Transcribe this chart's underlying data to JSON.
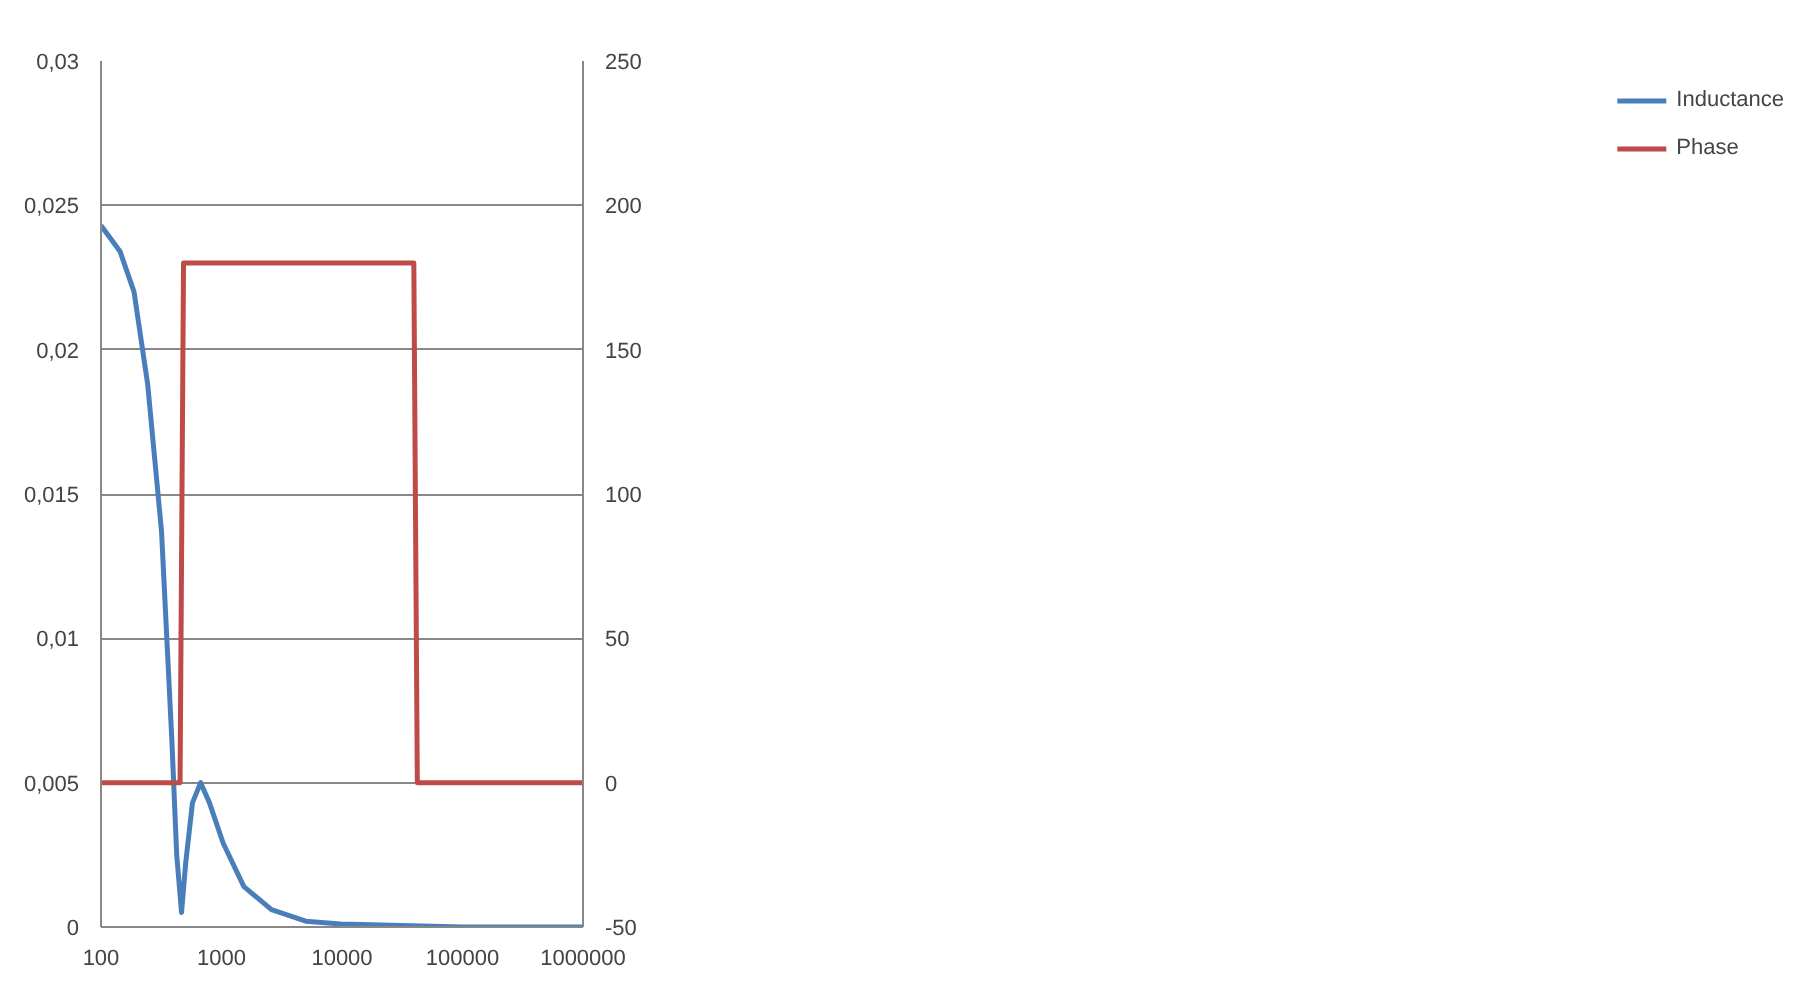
{
  "chart_data": {
    "type": "line",
    "log": "x",
    "grid": "y",
    "legend": "right",
    "xlim": [
      100,
      1000000
    ],
    "xticks": [
      100,
      1000,
      10000,
      100000,
      1000000
    ],
    "ylim": [
      0,
      0.03
    ],
    "yticks": [
      {
        "value": 0,
        "label": "0"
      },
      {
        "value": 0.005,
        "label": "0,005"
      },
      {
        "value": 0.01,
        "label": "0,01"
      },
      {
        "value": 0.015,
        "label": "0,015"
      },
      {
        "value": 0.02,
        "label": "0,02"
      },
      {
        "value": 0.025,
        "label": "0,025"
      },
      {
        "value": 0.03,
        "label": "0,03"
      }
    ],
    "y2lim": [
      -50,
      250
    ],
    "y2ticks": [
      -50,
      0,
      50,
      100,
      150,
      200,
      250
    ],
    "series": [
      {
        "name": "Inductance",
        "color": "#4a7ebb",
        "x": [
          100,
          144,
          188,
          244,
          318,
          387,
          425,
          466,
          504,
          574,
          671,
          795,
          1033,
          1534,
          2600,
          5000,
          9700,
          100000,
          1000000
        ],
        "values": [
          0.0243,
          0.0234,
          0.022,
          0.0188,
          0.0137,
          0.0065,
          0.0025,
          0.0005,
          0.0022,
          0.0043,
          0.005,
          0.0043,
          0.0029,
          0.0014,
          0.0006,
          0.0002,
          0.0001,
          0,
          0
        ]
      },
      {
        "name": "Phase",
        "color": "#be4b48",
        "axis": "y2",
        "x": [
          100,
          453,
          484,
          39450,
          42170,
          1000000
        ],
        "values": [
          0,
          0,
          180,
          180,
          0,
          0
        ]
      }
    ]
  }
}
